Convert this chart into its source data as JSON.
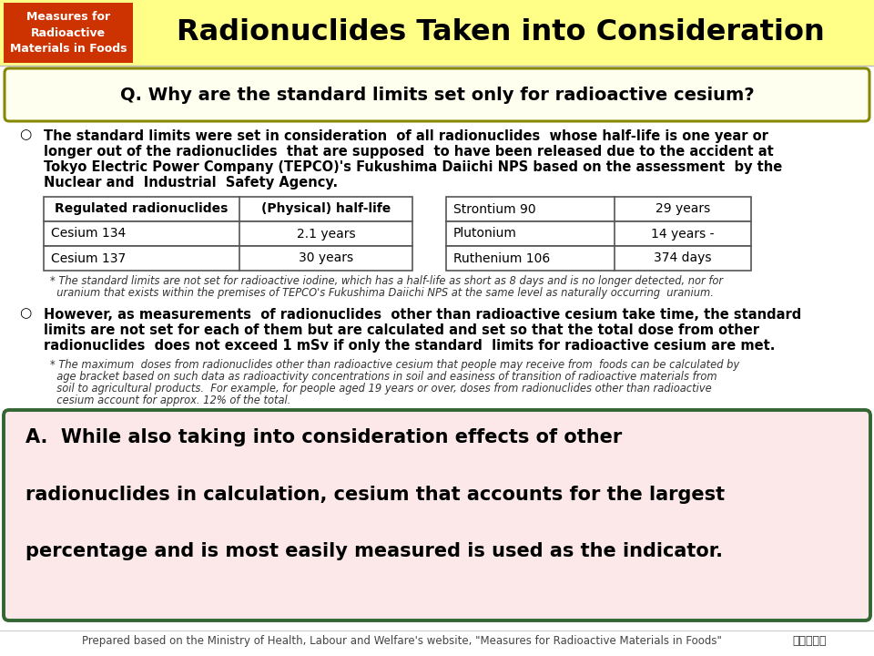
{
  "title": "Radionuclides Taken into Consideration",
  "header_box_text": "Measures for\nRadioactive\nMaterials in Foods",
  "header_box_color": "#cc3300",
  "header_bg_color": "#ffff88",
  "question_text": "Q. Why are the standard limits set only for radioactive cesium?",
  "question_box_border": "#888800",
  "question_box_bg": "#fffff0",
  "para1_lines": [
    "The standard limits were set in consideration  of all radionuclides  whose half-life is one year or",
    "longer out of the radionuclides  that are supposed  to have been released due to the accident at",
    "Tokyo Electric Power Company (TEPCO)'s Fukushima Daiichi NPS based on the assessment  by the",
    "Nuclear and  Industrial  Safety Agency."
  ],
  "table1_headers": [
    "Regulated radionuclides",
    "(Physical) half-life"
  ],
  "table1_rows": [
    [
      "Cesium 134",
      "2.1 years"
    ],
    [
      "Cesium 137",
      "30 years"
    ]
  ],
  "table2_rows": [
    [
      "Strontium 90",
      "29 years"
    ],
    [
      "Plutonium",
      "14 years -"
    ],
    [
      "Ruthenium 106",
      "374 days"
    ]
  ],
  "footnote1_lines": [
    "* The standard limits are not set for radioactive iodine, which has a half-life as short as 8 days and is no longer detected, nor for",
    "  uranium that exists within the premises of TEPCO's Fukushima Daiichi NPS at the same level as naturally occurring  uranium."
  ],
  "para2_lines": [
    "However, as measurements  of radionuclides  other than radioactive cesium take time, the standard",
    "limits are not set for each of them but are calculated and set so that the total dose from other",
    "radionuclides  does not exceed 1 mSv if only the standard  limits for radioactive cesium are met."
  ],
  "footnote2_lines": [
    "* The maximum  doses from radionuclides other than radioactive cesium that people may receive from  foods can be calculated by",
    "  age bracket based on such data as radioactivity concentrations in soil and easiness of transition of radioactive materials from",
    "  soil to agricultural products.  For example, for people aged 19 years or over, doses from radionuclides other than radioactive",
    "  cesium account for approx. 12% of the total."
  ],
  "answer_lines": [
    "A.  While also taking into consideration effects of other",
    "radionuclides in calculation, cesium that accounts for the largest",
    "percentage and is most easily measured is used as the indicator."
  ],
  "answer_box_border": "#336633",
  "answer_box_bg": "#fce8e8",
  "footer_text": "Prepared based on the Ministry of Health, Labour and Welfare's website, \"Measures for Radioactive Materials in Foods\"",
  "bg_color": "#ffffff"
}
